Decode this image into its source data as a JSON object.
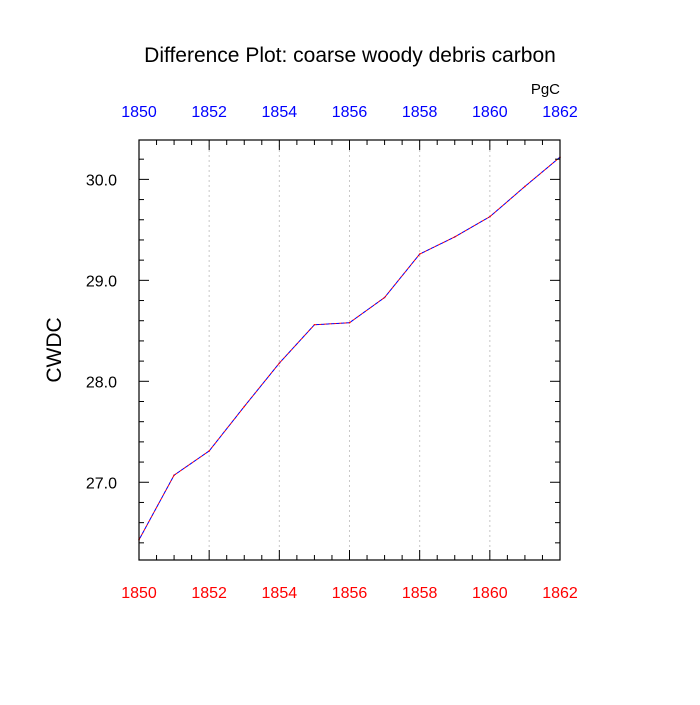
{
  "chart_data": {
    "type": "line",
    "title": "Difference Plot: coarse woody debris carbon",
    "ylabel": "CWDC",
    "units": "PgC",
    "xlim": [
      1850,
      1862
    ],
    "ylim": [
      26.23,
      30.39
    ],
    "x_ticks": [
      "1850",
      "1852",
      "1854",
      "1856",
      "1858",
      "1860",
      "1862"
    ],
    "y_ticks": [
      "27.0",
      "28.0",
      "29.0",
      "30.0"
    ],
    "grid": "vertical dotted at major x ticks",
    "colors": {
      "top_axis_labels": "#0000ff",
      "bottom_axis_labels": "#ff0000",
      "series_line_a": "#ff0000",
      "series_line_b": "#0000ff",
      "grid": "#c8c8c8",
      "axes": "#000000",
      "background": "#ffffff"
    },
    "series": [
      {
        "x": [
          1850,
          1851,
          1852,
          1853,
          1854,
          1855,
          1856,
          1857,
          1858,
          1859,
          1860,
          1861,
          1862
        ],
        "values": [
          26.43,
          27.07,
          27.31,
          27.75,
          28.18,
          28.56,
          28.58,
          28.83,
          29.26,
          29.43,
          29.63,
          29.93,
          30.22
        ]
      }
    ]
  }
}
